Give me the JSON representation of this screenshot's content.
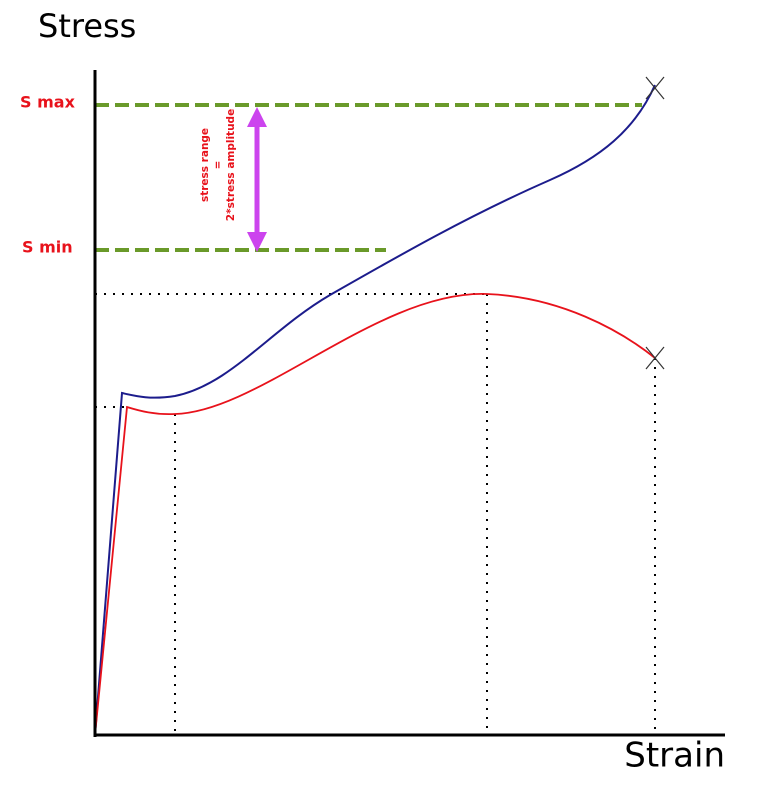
{
  "axes": {
    "y_label": "Stress",
    "x_label": "Strain"
  },
  "levels": {
    "max_label": "S max",
    "min_label": "S min"
  },
  "annotation": {
    "lines": [
      "stress range",
      "=",
      "2*stress amplitude"
    ]
  }
}
